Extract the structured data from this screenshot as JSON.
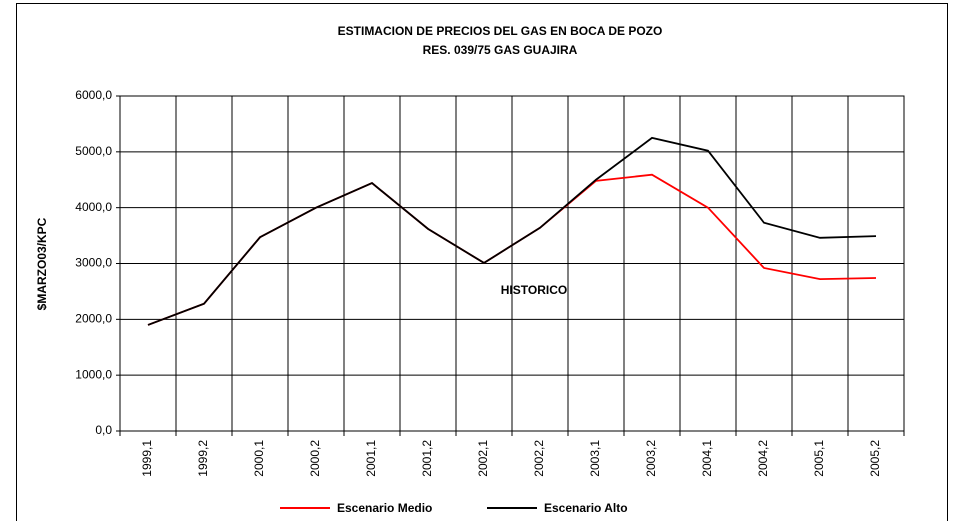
{
  "chart_data": {
    "type": "line",
    "title": "ESTIMACION DE PRECIOS DEL GAS EN BOCA DE POZO",
    "subtitle": "RES. 039/75 GAS GUAJIRA",
    "y_label": "$MARZO03/KPC",
    "annotation": "HISTORICO",
    "categories": [
      "1999,1",
      "1999,2",
      "2000,1",
      "2000,2",
      "2001,1",
      "2001,2",
      "2002,1",
      "2002,2",
      "2003,1",
      "2003,2",
      "2004,1",
      "2004,2",
      "2005,1",
      "2005,2"
    ],
    "series": [
      {
        "name": "Escenario Medio",
        "color": "#ff0000",
        "values": [
          1900,
          2280,
          3470,
          4000,
          4440,
          3620,
          3010,
          3640,
          4480,
          4590,
          4000,
          2920,
          2720,
          2740
        ]
      },
      {
        "name": "Escenario Alto",
        "color": "#000000",
        "values": [
          1900,
          2280,
          3470,
          4000,
          4440,
          3620,
          3010,
          3640,
          4500,
          5250,
          5020,
          3730,
          3460,
          3490
        ]
      }
    ],
    "ylim": [
      0,
      6000
    ],
    "yticks": [
      {
        "value": 0,
        "label": "0,0"
      },
      {
        "value": 1000,
        "label": "1000,0"
      },
      {
        "value": 2000,
        "label": "2000,0"
      },
      {
        "value": 3000,
        "label": "3000,0"
      },
      {
        "value": 4000,
        "label": "4000,0"
      },
      {
        "value": 5000,
        "label": "5000,0"
      },
      {
        "value": 6000,
        "label": "6000,0"
      }
    ],
    "grid": true,
    "legend": "bottom"
  }
}
